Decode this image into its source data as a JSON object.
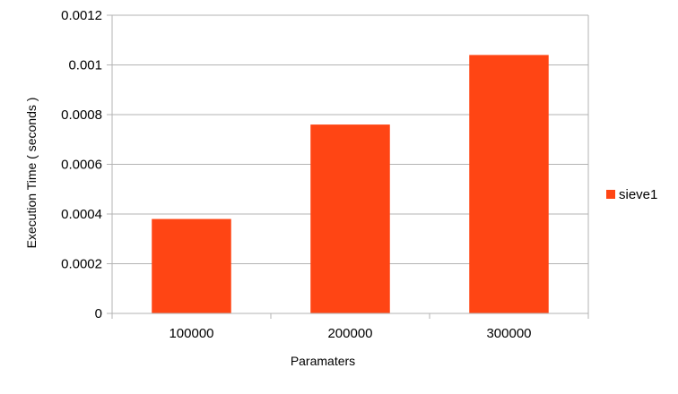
{
  "chart_data": {
    "type": "bar",
    "title": "",
    "xlabel": "Paramaters",
    "ylabel": "Execution Time ( seconds )",
    "categories": [
      "100000",
      "200000",
      "300000"
    ],
    "series": [
      {
        "name": "sieve1",
        "values": [
          0.00038,
          0.00076,
          0.00104
        ],
        "color": "#ff4514"
      }
    ],
    "ylim": [
      0,
      0.0012
    ],
    "yticks": [
      0,
      0.0002,
      0.0004,
      0.0006,
      0.0008,
      0.001,
      0.0012
    ],
    "ytick_labels": [
      "0",
      "0.0002",
      "0.0004",
      "0.0006",
      "0.0008",
      "0.001",
      "0.0012"
    ],
    "grid": true,
    "legend": "right"
  }
}
